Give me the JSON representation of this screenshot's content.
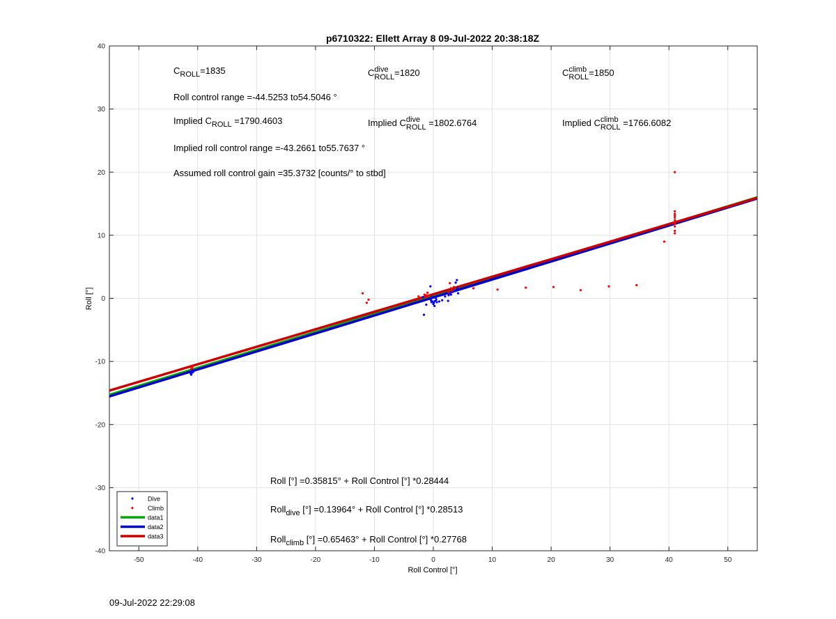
{
  "chart_data": {
    "type": "scatter",
    "title": "p6710322: Ellett Array 8 09-Jul-2022 20:38:18Z",
    "xlabel": "Roll Control [°]",
    "ylabel": "Roll [°]",
    "xlim": [
      -55,
      55
    ],
    "ylim": [
      -40,
      40
    ],
    "xticks": [
      -50,
      -40,
      -30,
      -20,
      -10,
      0,
      10,
      20,
      30,
      40,
      50
    ],
    "yticks": [
      -40,
      -30,
      -20,
      -10,
      0,
      10,
      20,
      30,
      40
    ],
    "grid": true,
    "legend_position": "bottom-left",
    "series": [
      {
        "name": "Dive",
        "kind": "points",
        "color": "#0000ff",
        "x": [
          -41.2,
          -41.1,
          -41.0,
          -40.9,
          -41.1,
          -41.0,
          -40.8,
          -1.8,
          -1.6,
          -1.2,
          -0.5,
          -0.4,
          -0.3,
          -0.2,
          -0.1,
          0.0,
          0.1,
          0.2,
          0.3,
          0.4,
          0.5,
          0.6,
          1.0,
          1.5,
          2.0,
          2.5,
          2.6,
          2.8,
          3.0,
          3.2,
          3.5,
          3.8,
          4.0,
          4.1,
          4.2
        ],
        "y": [
          -11.9,
          -11.6,
          -11.8,
          -11.4,
          -12.1,
          -11.3,
          -11.7,
          0.2,
          -2.6,
          -1.0,
          1.9,
          -0.3,
          -0.6,
          0.2,
          -0.5,
          -0.9,
          -0.7,
          -1.2,
          -0.4,
          0.1,
          -0.2,
          -0.6,
          -0.5,
          -0.3,
          0.3,
          -0.4,
          0.5,
          0.8,
          0.6,
          1.0,
          1.2,
          2.5,
          2.9,
          1.6,
          0.8
        ]
      },
      {
        "name": "Climb",
        "kind": "points",
        "color": "#ff0000",
        "x": [
          -41.0,
          -40.9,
          -41.1,
          -12.0,
          -11.3,
          -11.0,
          -2.5,
          -1.5,
          -1.3,
          -1.2,
          -1.0,
          -0.8,
          2.6,
          2.8,
          3.0,
          3.2,
          3.5,
          6.8,
          10.9,
          15.7,
          20.4,
          25.0,
          29.8,
          34.5,
          39.2,
          41.0,
          41.0,
          41.0,
          41.0,
          41.0,
          41.0,
          41.0,
          41.0,
          41.0,
          41.0,
          41.0
        ],
        "y": [
          -11.0,
          -10.8,
          -11.2,
          0.8,
          -0.7,
          -0.2,
          0.3,
          0.6,
          0.2,
          0.5,
          0.9,
          0.4,
          1.0,
          2.4,
          1.6,
          1.2,
          1.8,
          1.6,
          1.4,
          1.7,
          1.8,
          1.3,
          1.9,
          2.1,
          9.0,
          20.0,
          10.3,
          10.7,
          11.4,
          12.0,
          12.4,
          12.8,
          13.1,
          13.4,
          13.8,
          11.8
        ]
      },
      {
        "name": "data1",
        "kind": "line",
        "color": "#00aa00",
        "intercept": 0.35815,
        "slope": 0.28444
      },
      {
        "name": "data2",
        "kind": "line",
        "color": "#0000cc",
        "intercept": 0.13964,
        "slope": 0.28513
      },
      {
        "name": "data3",
        "kind": "line",
        "color": "#cc0000",
        "intercept": 0.65463,
        "slope": 0.27768
      }
    ],
    "annotations": {
      "croll": {
        "value": "=1835"
      },
      "croll_dive": {
        "value": "=1820"
      },
      "croll_climb": {
        "value": "=1850"
      },
      "roll_range": "Roll control range =-44.5253 to54.5046 °",
      "implied_croll": {
        "prefix": "Implied ",
        "value": " =1790.4603"
      },
      "implied_croll_dive": {
        "prefix": "Implied ",
        "value": " =1802.6764"
      },
      "implied_croll_climb": {
        "prefix": "Implied ",
        "value": " =1766.6082"
      },
      "implied_range": "Implied roll control range =-43.2661 to55.7637 °",
      "gain": "Assumed roll control gain =35.3732 [counts/° to stbd]",
      "fit_all": "Roll [°] =0.35815° + Roll Control [°] *0.28444",
      "fit_dive": {
        "prefix": "Roll",
        "sub": "dive",
        "rest": " [°] =0.13964° + Roll Control [°] *0.28513"
      },
      "fit_climb": {
        "prefix": "Roll",
        "sub": "climb",
        "rest": " [°] =0.65463° + Roll Control [°] *0.27768"
      }
    },
    "labels": {
      "C": "C",
      "ROLL": "ROLL",
      "dive": "dive",
      "climb": "climb"
    }
  },
  "footer": {
    "timestamp": "09-Jul-2022 22:29:08"
  }
}
